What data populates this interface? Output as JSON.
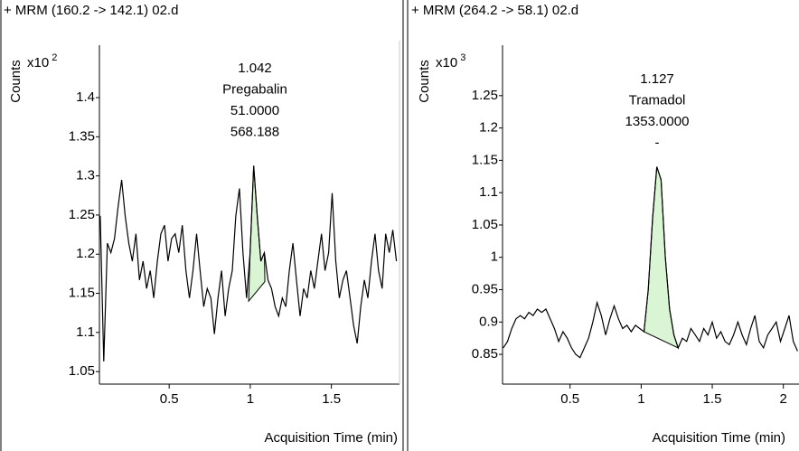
{
  "chart_data": [
    {
      "type": "line",
      "title": "+ MRM (160.2 -> 142.1) 02.d",
      "ylabel": "Counts",
      "y_scale_label": {
        "base": "x10",
        "exponent": "2"
      },
      "xlabel": "Acquisition Time (min)",
      "color": "#000000",
      "annotations": [
        "1.042",
        "Pregabalin",
        "51.0000",
        "568.188"
      ],
      "xlim": [
        0.07,
        1.92
      ],
      "xticks": [
        0.5,
        1,
        1.5
      ],
      "ylim": [
        1.034,
        1.467
      ],
      "yticks": [
        1.05,
        1.1,
        1.15,
        1.2,
        1.25,
        1.3,
        1.35,
        1.4
      ],
      "x": [
        0.075,
        0.097,
        0.119,
        0.141,
        0.163,
        0.185,
        0.207,
        0.229,
        0.251,
        0.273,
        0.295,
        0.317,
        0.339,
        0.361,
        0.383,
        0.405,
        0.427,
        0.449,
        0.471,
        0.493,
        0.515,
        0.537,
        0.559,
        0.581,
        0.603,
        0.625,
        0.647,
        0.669,
        0.691,
        0.713,
        0.735,
        0.757,
        0.779,
        0.801,
        0.823,
        0.845,
        0.867,
        0.889,
        0.911,
        0.933,
        0.955,
        0.977,
        0.999,
        1.021,
        1.043,
        1.065,
        1.087,
        1.109,
        1.131,
        1.153,
        1.175,
        1.197,
        1.219,
        1.241,
        1.263,
        1.285,
        1.307,
        1.329,
        1.351,
        1.373,
        1.395,
        1.417,
        1.439,
        1.461,
        1.483,
        1.505,
        1.527,
        1.549,
        1.571,
        1.593,
        1.615,
        1.637,
        1.659,
        1.681,
        1.703,
        1.725,
        1.747,
        1.769,
        1.791,
        1.813,
        1.835,
        1.857,
        1.879,
        1.901
      ],
      "values": [
        1.249,
        1.063,
        1.214,
        1.202,
        1.22,
        1.26,
        1.295,
        1.249,
        1.214,
        1.191,
        1.226,
        1.167,
        1.191,
        1.156,
        1.179,
        1.144,
        1.191,
        1.226,
        1.237,
        1.191,
        1.22,
        1.226,
        1.202,
        1.237,
        1.179,
        1.144,
        1.179,
        1.226,
        1.179,
        1.133,
        1.156,
        1.144,
        1.098,
        1.144,
        1.179,
        1.121,
        1.156,
        1.179,
        1.249,
        1.284,
        1.202,
        1.144,
        1.202,
        1.313,
        1.249,
        1.191,
        1.202,
        1.167,
        1.156,
        1.133,
        1.121,
        1.144,
        1.133,
        1.179,
        1.214,
        1.167,
        1.121,
        1.156,
        1.144,
        1.179,
        1.156,
        1.191,
        1.226,
        1.179,
        1.202,
        1.278,
        1.191,
        1.144,
        1.167,
        1.179,
        1.144,
        1.109,
        1.086,
        1.133,
        1.167,
        1.144,
        1.191,
        1.226,
        1.179,
        1.156,
        1.226,
        1.202,
        1.231,
        1.191
      ],
      "peak": {
        "x": [
          0.99,
          1.09
        ],
        "baseline": [
          1.14,
          1.165
        ],
        "color": "#d9f5d3"
      }
    },
    {
      "type": "line",
      "title": "+ MRM (264.2 -> 58.1) 02.d",
      "ylabel": "Counts",
      "y_scale_label": {
        "base": "x10",
        "exponent": "3"
      },
      "xlabel": "Acquisition Time (min)",
      "color": "#000000",
      "annotations": [
        "1.127",
        "Tramadol",
        "1353.0000",
        "-"
      ],
      "xlim": [
        0.025,
        2.11
      ],
      "xticks": [
        0.5,
        1,
        1.5,
        2
      ],
      "ylim": [
        0.804,
        1.328
      ],
      "yticks": [
        0.85,
        0.9,
        0.95,
        1,
        1.05,
        1.1,
        1.15,
        1.2,
        1.25
      ],
      "x": [
        0.03,
        0.06,
        0.09,
        0.12,
        0.15,
        0.18,
        0.21,
        0.24,
        0.27,
        0.3,
        0.33,
        0.36,
        0.39,
        0.42,
        0.45,
        0.48,
        0.51,
        0.54,
        0.57,
        0.6,
        0.63,
        0.66,
        0.69,
        0.72,
        0.75,
        0.78,
        0.81,
        0.84,
        0.87,
        0.9,
        0.93,
        0.96,
        0.99,
        1.02,
        1.05,
        1.08,
        1.11,
        1.14,
        1.17,
        1.2,
        1.23,
        1.26,
        1.29,
        1.32,
        1.35,
        1.38,
        1.41,
        1.44,
        1.47,
        1.5,
        1.53,
        1.56,
        1.59,
        1.62,
        1.65,
        1.68,
        1.71,
        1.74,
        1.77,
        1.8,
        1.83,
        1.86,
        1.89,
        1.92,
        1.95,
        1.98,
        2.01,
        2.04,
        2.07,
        2.1
      ],
      "values": [
        0.86,
        0.87,
        0.89,
        0.905,
        0.91,
        0.905,
        0.915,
        0.91,
        0.92,
        0.915,
        0.92,
        0.905,
        0.89,
        0.87,
        0.885,
        0.875,
        0.86,
        0.85,
        0.845,
        0.86,
        0.875,
        0.9,
        0.93,
        0.91,
        0.88,
        0.905,
        0.925,
        0.905,
        0.89,
        0.895,
        0.885,
        0.895,
        0.89,
        0.885,
        0.95,
        1.06,
        1.14,
        1.12,
        1.0,
        0.92,
        0.88,
        0.86,
        0.875,
        0.87,
        0.89,
        0.88,
        0.87,
        0.89,
        0.88,
        0.9,
        0.875,
        0.885,
        0.87,
        0.865,
        0.88,
        0.9,
        0.88,
        0.865,
        0.89,
        0.91,
        0.87,
        0.86,
        0.88,
        0.89,
        0.9,
        0.87,
        0.89,
        0.91,
        0.87,
        0.855
      ],
      "peak": {
        "x": [
          1.02,
          1.26
        ],
        "baseline": [
          0.885,
          0.86
        ],
        "color": "#d9f5d3"
      }
    }
  ]
}
